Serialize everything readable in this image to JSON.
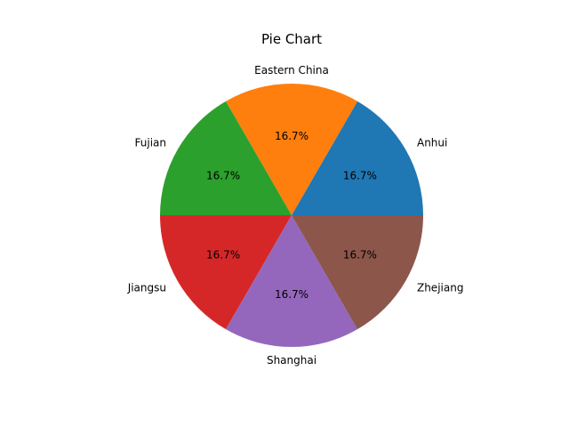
{
  "chart_data": {
    "type": "pie",
    "title": "Pie Chart",
    "categories": [
      "Anhui",
      "Eastern China",
      "Fujian",
      "Jiangsu",
      "Shanghai",
      "Zhejiang"
    ],
    "values": [
      1,
      1,
      1,
      1,
      1,
      1
    ],
    "percent_labels": [
      "16.7%",
      "16.7%",
      "16.7%",
      "16.7%",
      "16.7%",
      "16.7%"
    ],
    "colors": [
      "#1f77b4",
      "#ff7f0e",
      "#2ca02c",
      "#d62728",
      "#9467bd",
      "#8c564b"
    ],
    "start_angle_deg": 0,
    "direction": "counterclockwise",
    "legend": "none"
  }
}
